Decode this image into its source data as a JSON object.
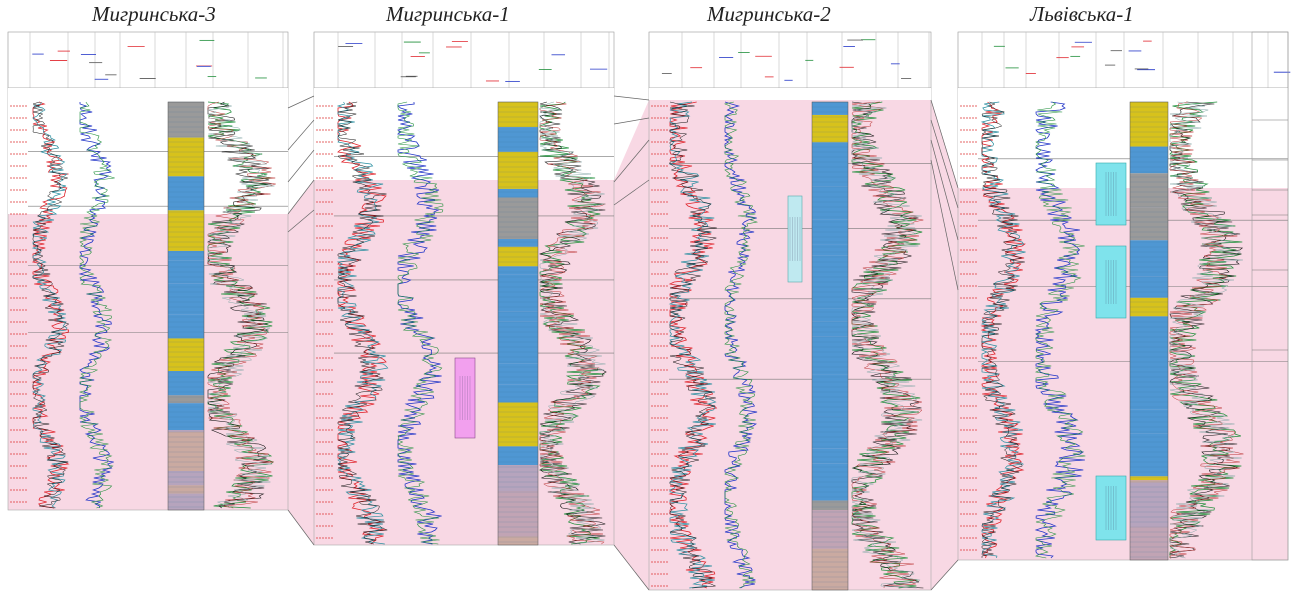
{
  "wells": [
    {
      "id": "m3",
      "name": "Мигринська-3"
    },
    {
      "id": "m1",
      "name": "Мигринська-1"
    },
    {
      "id": "m2",
      "name": "Мигринська-2"
    },
    {
      "id": "l1",
      "name": "Львівська-1"
    }
  ],
  "colors": {
    "pink_fill": "#f8d8e4",
    "lithology_blue": "#4f97d3",
    "lithology_yellow": "#d7c21c",
    "lithology_grey": "#9a9a9a",
    "lithology_mauve": "#c8a6b8",
    "curve_red": "#e0242c",
    "curve_blue": "#2336c8",
    "curve_green": "#1f8f3a",
    "curve_black": "#111111",
    "curve_teal": "#2a8fa0",
    "callout_cyan": "#7fe3ec",
    "callout_magenta": "#f2a0ee"
  }
}
